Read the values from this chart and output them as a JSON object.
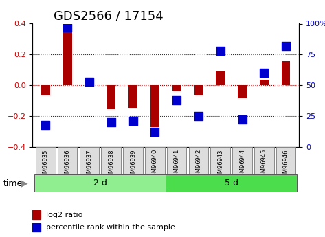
{
  "title": "GDS2566 / 17154",
  "samples": [
    "GSM96935",
    "GSM96936",
    "GSM96937",
    "GSM96938",
    "GSM96939",
    "GSM96940",
    "GSM96941",
    "GSM96942",
    "GSM96943",
    "GSM96944",
    "GSM96945",
    "GSM96946"
  ],
  "log2_ratio": [
    -0.065,
    0.37,
    0.02,
    -0.155,
    -0.145,
    -0.27,
    -0.04,
    -0.065,
    0.09,
    -0.085,
    0.035,
    0.155
  ],
  "percentile_rank": [
    18,
    97,
    53,
    20,
    21,
    12,
    38,
    25,
    78,
    22,
    60,
    82
  ],
  "groups": [
    {
      "label": "2 d",
      "start": 0,
      "end": 6,
      "color": "#90ee90"
    },
    {
      "label": "5 d",
      "start": 6,
      "end": 12,
      "color": "#4cdd4c"
    }
  ],
  "bar_color": "#aa0000",
  "dot_color": "#0000cc",
  "ylim_left": [
    -0.4,
    0.4
  ],
  "ylim_right": [
    0,
    100
  ],
  "yticks_left": [
    -0.4,
    -0.2,
    0.0,
    0.2,
    0.4
  ],
  "yticks_right": [
    0,
    25,
    50,
    75,
    100
  ],
  "ytick_labels_right": [
    "0",
    "25",
    "50",
    "75",
    "100%"
  ],
  "hline_color": "#cc0000",
  "hline_style": "dotted",
  "dotted_color": "#333333",
  "bg_color": "#ffffff",
  "tick_label_color_left": "#cc0000",
  "tick_label_color_right": "#0000cc",
  "title_fontsize": 13,
  "xlabel_fontsize": 8,
  "ylabel_fontsize": 9,
  "time_label": "time",
  "legend_log2": "log2 ratio",
  "legend_pct": "percentile rank within the sample"
}
